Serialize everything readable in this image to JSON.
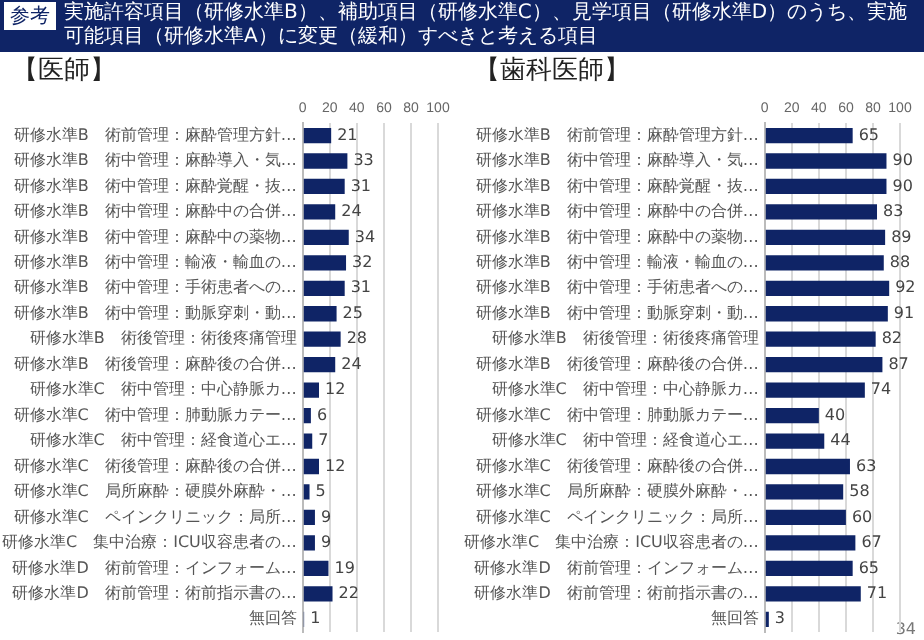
{
  "chart_data": [
    {
      "type": "bar",
      "orientation": "horizontal",
      "title": "【医師】",
      "annotations": [
        "参考",
        "実施許容項目（研修水準B）、補助項目（研修水準C）、見学項目（研修水準D）のうち、実施可能項目（研修水準A）に変更（緩和）すべきと考える項目"
      ],
      "categories": [
        "研修水準B　術前管理：麻酔管理方針…",
        "研修水準B　術中管理：麻酔導入・気…",
        "研修水準B　術中管理：麻酔覚醒・抜…",
        "研修水準B　術中管理：麻酔中の合併…",
        "研修水準B　術中管理：麻酔中の薬物…",
        "研修水準B　術中管理：輸液・輸血の…",
        "研修水準B　術中管理：手術患者への…",
        "研修水準B　術中管理：動脈穿刺・動…",
        "研修水準B　術後管理：術後疼痛管理",
        "研修水準B　術後管理：麻酔後の合併…",
        "研修水準C　術中管理：中心静脈カ…",
        "研修水準C　術中管理：肺動脈カテー…",
        "研修水準C　術中管理：経食道心エ…",
        "研修水準C　術後管理：麻酔後の合併…",
        "研修水準C　局所麻酔：硬膜外麻酔・…",
        "研修水準C　ペインクリニック：局所…",
        "研修水準C　集中治療：ICU収容患者の…",
        "研修水準D　術前管理：インフォーム…",
        "研修水準D　術前管理：術前指示書の…",
        "無回答"
      ],
      "values": [
        21,
        33,
        31,
        24,
        34,
        32,
        31,
        25,
        28,
        24,
        12,
        6,
        7,
        12,
        5,
        9,
        9,
        19,
        22,
        1
      ],
      "color": "#0f2466",
      "xlim": [
        0,
        100
      ],
      "xticks": [
        0,
        20,
        40,
        60,
        80,
        100
      ],
      "grid": "x",
      "data_labels": true
    },
    {
      "type": "bar",
      "orientation": "horizontal",
      "title": "【歯科医師】",
      "annotations": [
        "34"
      ],
      "categories": [
        "研修水準B　術前管理：麻酔管理方針…",
        "研修水準B　術中管理：麻酔導入・気…",
        "研修水準B　術中管理：麻酔覚醒・抜…",
        "研修水準B　術中管理：麻酔中の合併…",
        "研修水準B　術中管理：麻酔中の薬物…",
        "研修水準B　術中管理：輸液・輸血の…",
        "研修水準B　術中管理：手術患者への…",
        "研修水準B　術中管理：動脈穿刺・動…",
        "研修水準B　術後管理：術後疼痛管理",
        "研修水準B　術後管理：麻酔後の合併…",
        "研修水準C　術中管理：中心静脈カ…",
        "研修水準C　術中管理：肺動脈カテー…",
        "研修水準C　術中管理：経食道心エ…",
        "研修水準C　術後管理：麻酔後の合併…",
        "研修水準C　局所麻酔：硬膜外麻酔・…",
        "研修水準C　ペインクリニック：局所…",
        "研修水準C　集中治療：ICU収容患者の…",
        "研修水準D　術前管理：インフォーム…",
        "研修水準D　術前管理：術前指示書の…",
        "無回答"
      ],
      "values": [
        65,
        90,
        90,
        83,
        89,
        88,
        92,
        91,
        82,
        87,
        74,
        40,
        44,
        63,
        58,
        60,
        67,
        65,
        71,
        3
      ],
      "color": "#0f2466",
      "xlim": [
        0,
        100
      ],
      "xticks": [
        0,
        20,
        40,
        60,
        80,
        100
      ],
      "grid": "x",
      "data_labels": true
    }
  ]
}
